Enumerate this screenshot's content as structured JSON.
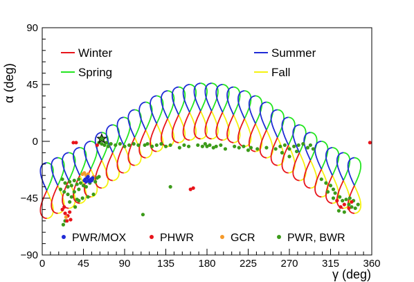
{
  "chart_data": {
    "type": "scatter",
    "xlabel": "γ (deg)",
    "ylabel": "α (deg)",
    "xlim": [
      0,
      360
    ],
    "ylim": [
      -90,
      90
    ],
    "xticks": [
      0,
      45,
      90,
      135,
      180,
      225,
      270,
      315,
      360
    ],
    "yticks": [
      -90,
      -45,
      0,
      45,
      90
    ],
    "tick_labels_x": [
      "0",
      "45",
      "90",
      "135",
      "180",
      "225",
      "270",
      "315",
      "360"
    ],
    "tick_labels_y": [
      "−90",
      "−45",
      "0",
      "45",
      "90"
    ],
    "grid": false,
    "season_legend": [
      {
        "name": "Winter",
        "color": "#e8141b"
      },
      {
        "name": "Spring",
        "color": "#22e51f"
      },
      {
        "name": "Summer",
        "color": "#1f2bd6"
      },
      {
        "name": "Fall",
        "color": "#f5f20f"
      }
    ],
    "loops": [
      {
        "x": 5,
        "y": -39
      },
      {
        "x": 17,
        "y": -35
      },
      {
        "x": 29,
        "y": -31
      },
      {
        "x": 41,
        "y": -27
      },
      {
        "x": 53,
        "y": -22
      },
      {
        "x": 65,
        "y": -15
      },
      {
        "x": 77,
        "y": -9
      },
      {
        "x": 89,
        "y": -3
      },
      {
        "x": 101,
        "y": 3
      },
      {
        "x": 113,
        "y": 9
      },
      {
        "x": 125,
        "y": 14
      },
      {
        "x": 137,
        "y": 18
      },
      {
        "x": 149,
        "y": 21
      },
      {
        "x": 161,
        "y": 23
      },
      {
        "x": 173,
        "y": 24
      },
      {
        "x": 185,
        "y": 24
      },
      {
        "x": 197,
        "y": 23
      },
      {
        "x": 209,
        "y": 21
      },
      {
        "x": 221,
        "y": 18
      },
      {
        "x": 233,
        "y": 14
      },
      {
        "x": 245,
        "y": 9
      },
      {
        "x": 257,
        "y": 3
      },
      {
        "x": 269,
        "y": -3
      },
      {
        "x": 281,
        "y": -9
      },
      {
        "x": 293,
        "y": -15
      },
      {
        "x": 305,
        "y": -22
      },
      {
        "x": 317,
        "y": -27
      },
      {
        "x": 329,
        "y": -31
      },
      {
        "x": 341,
        "y": -35
      }
    ],
    "series": [
      {
        "name": "PWR/MOX",
        "color": "#1f2bd6",
        "points": [
          [
            47,
            -30
          ],
          [
            49,
            -29
          ],
          [
            51,
            -31
          ],
          [
            53,
            -30
          ],
          [
            55,
            -29
          ],
          [
            46,
            -31
          ],
          [
            50,
            -28
          ],
          [
            52,
            -32
          ],
          [
            54,
            -31
          ],
          [
            48,
            -32
          ]
        ]
      },
      {
        "name": "PHWR",
        "color": "#e8141b",
        "points": [
          [
            34,
            -1
          ],
          [
            37,
            -1
          ],
          [
            60,
            -3
          ],
          [
            162,
            -38
          ],
          [
            165,
            -37
          ],
          [
            358,
            -1
          ],
          [
            22,
            -54
          ],
          [
            25,
            -57
          ],
          [
            28,
            -59
          ],
          [
            30,
            -56
          ],
          [
            24,
            -52
          ],
          [
            27,
            -63
          ],
          [
            31,
            -62
          ],
          [
            330,
            -50
          ],
          [
            335,
            -53
          ],
          [
            338,
            -48
          ],
          [
            322,
            -47
          ],
          [
            326,
            -52
          ]
        ]
      },
      {
        "name": "GCR",
        "color": "#f59a2a",
        "points": [
          [
            44,
            -26
          ],
          [
            46,
            -25
          ],
          [
            48,
            -27
          ],
          [
            50,
            -26
          ],
          [
            56,
            -28
          ],
          [
            26,
            -60
          ]
        ]
      },
      {
        "name": "PWR, BWR",
        "color": "#3c9b1a",
        "points": [
          [
            62,
            -1
          ],
          [
            65,
            -2
          ],
          [
            68,
            -3
          ],
          [
            70,
            -1
          ],
          [
            72,
            -4
          ],
          [
            75,
            -2
          ],
          [
            80,
            -3
          ],
          [
            85,
            -2
          ],
          [
            90,
            -4
          ],
          [
            95,
            -3
          ],
          [
            100,
            -2
          ],
          [
            105,
            -3
          ],
          [
            112,
            -3
          ],
          [
            115,
            -2
          ],
          [
            120,
            -4
          ],
          [
            125,
            -3
          ],
          [
            130,
            -2
          ],
          [
            135,
            -4
          ],
          [
            140,
            -3
          ],
          [
            150,
            -5
          ],
          [
            155,
            -3
          ],
          [
            160,
            -4
          ],
          [
            170,
            -3
          ],
          [
            175,
            -4
          ],
          [
            178,
            -2
          ],
          [
            180,
            -4
          ],
          [
            183,
            -3
          ],
          [
            187,
            -5
          ],
          [
            190,
            -4
          ],
          [
            195,
            -3
          ],
          [
            200,
            -6
          ],
          [
            210,
            -4
          ],
          [
            215,
            -5
          ],
          [
            220,
            -4
          ],
          [
            225,
            -7
          ],
          [
            228,
            -5
          ],
          [
            235,
            -6
          ],
          [
            245,
            -5
          ],
          [
            255,
            -6
          ],
          [
            260,
            -4
          ],
          [
            265,
            -3
          ],
          [
            270,
            -6
          ],
          [
            275,
            -4
          ],
          [
            280,
            -3
          ],
          [
            285,
            -2
          ],
          [
            290,
            -5
          ],
          [
            293,
            -3
          ],
          [
            296,
            -6
          ],
          [
            262,
            -9
          ],
          [
            270,
            -12
          ],
          [
            278,
            -8
          ],
          [
            22,
            -30
          ],
          [
            25,
            -33
          ],
          [
            28,
            -36
          ],
          [
            30,
            -32
          ],
          [
            32,
            -35
          ],
          [
            35,
            -31
          ],
          [
            38,
            -34
          ],
          [
            40,
            -30
          ],
          [
            42,
            -33
          ],
          [
            45,
            -35
          ],
          [
            48,
            -36
          ],
          [
            52,
            -33
          ],
          [
            55,
            -30
          ],
          [
            58,
            -32
          ],
          [
            60,
            -29
          ],
          [
            62,
            -28
          ],
          [
            35,
            -40
          ],
          [
            40,
            -38
          ],
          [
            28,
            -42
          ],
          [
            32,
            -44
          ],
          [
            38,
            -46
          ],
          [
            20,
            -38
          ],
          [
            24,
            -40
          ],
          [
            30,
            -48
          ],
          [
            36,
            -52
          ],
          [
            40,
            -47
          ],
          [
            44,
            -45
          ],
          [
            50,
            -44
          ],
          [
            56,
            -42
          ],
          [
            305,
            -30
          ],
          [
            310,
            -33
          ],
          [
            315,
            -35
          ],
          [
            318,
            -38
          ],
          [
            320,
            -41
          ],
          [
            325,
            -44
          ],
          [
            328,
            -47
          ],
          [
            332,
            -46
          ],
          [
            335,
            -50
          ],
          [
            338,
            -52
          ],
          [
            340,
            -47
          ],
          [
            342,
            -53
          ],
          [
            345,
            -50
          ],
          [
            312,
            -40
          ],
          [
            318,
            -45
          ],
          [
            324,
            -55
          ],
          [
            330,
            -56
          ],
          [
            336,
            -45
          ],
          [
            140,
            -36
          ],
          [
            110,
            -58
          ],
          [
            25,
            -63
          ],
          [
            23,
            -66
          ]
        ]
      }
    ],
    "annotations": [
      {
        "name": "star",
        "x": 65,
        "y": 2,
        "color": "#3c9b1a"
      }
    ]
  }
}
